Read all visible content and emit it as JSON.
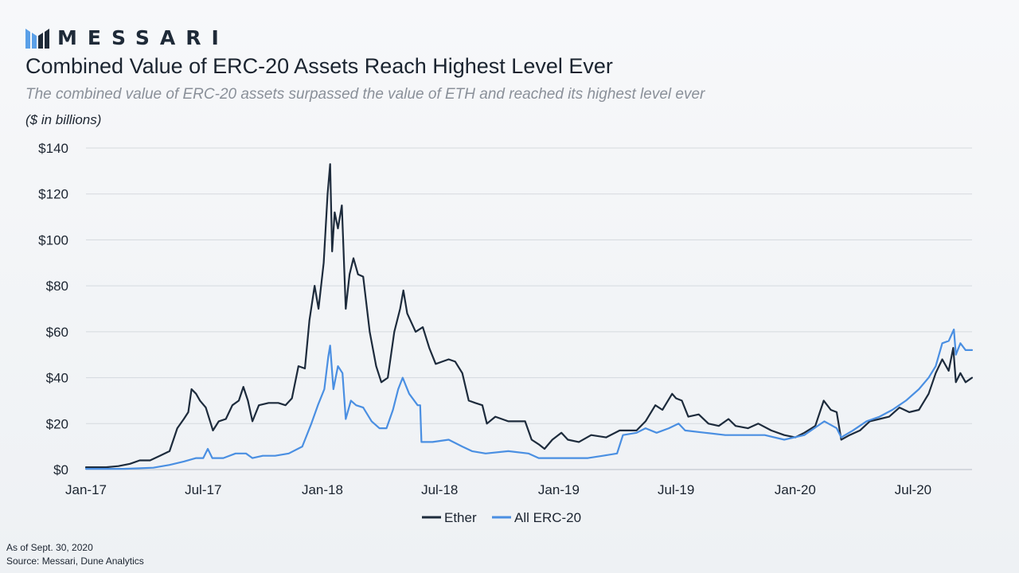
{
  "brand": {
    "name": "MESSARI",
    "logo_icon": "messari-m-logo-icon",
    "logo_colors": [
      "#5aa0e8",
      "#1e2a38"
    ]
  },
  "header": {
    "title": "Combined Value of ERC-20 Assets Reach Highest Level Ever",
    "subtitle": "The combined value of ERC-20 assets surpassed the value of ETH and reached its highest level ever",
    "units": "($ in billions)"
  },
  "footer": {
    "as_of": "As of Sept. 30, 2020",
    "source": "Source: Messari, Dune Analytics"
  },
  "chart_data": {
    "type": "line",
    "title": "",
    "xlabel": "",
    "ylabel": "",
    "ylim": [
      0,
      140
    ],
    "xlim": [
      "2017-01-01",
      "2020-09-30"
    ],
    "y_ticks": [
      0,
      20,
      40,
      60,
      80,
      100,
      120,
      140
    ],
    "y_tick_labels": [
      "$0",
      "$20",
      "$40",
      "$60",
      "$80",
      "$100",
      "$120",
      "$140"
    ],
    "x_ticks": [
      "2017-01-01",
      "2017-07-01",
      "2018-01-01",
      "2018-07-01",
      "2019-01-01",
      "2019-07-01",
      "2020-01-01",
      "2020-07-01"
    ],
    "x_tick_labels": [
      "Jan-17",
      "Jul-17",
      "Jan-18",
      "Jul-18",
      "Jan-19",
      "Jul-19",
      "Jan-20",
      "Jul-20"
    ],
    "grid": "horizontal",
    "legend": "bottom-center",
    "series": [
      {
        "name": "Ether",
        "color": "#1d2b3c",
        "points": [
          [
            "2017-01-01",
            1
          ],
          [
            "2017-02-01",
            1
          ],
          [
            "2017-02-20",
            1.5
          ],
          [
            "2017-03-10",
            2.5
          ],
          [
            "2017-03-25",
            4
          ],
          [
            "2017-04-10",
            4
          ],
          [
            "2017-04-25",
            6
          ],
          [
            "2017-05-10",
            8
          ],
          [
            "2017-05-22",
            18
          ],
          [
            "2017-06-01",
            22
          ],
          [
            "2017-06-08",
            25
          ],
          [
            "2017-06-13",
            35
          ],
          [
            "2017-06-20",
            33
          ],
          [
            "2017-06-26",
            30
          ],
          [
            "2017-07-05",
            27
          ],
          [
            "2017-07-16",
            17
          ],
          [
            "2017-07-25",
            21
          ],
          [
            "2017-08-05",
            22
          ],
          [
            "2017-08-15",
            28
          ],
          [
            "2017-08-25",
            30
          ],
          [
            "2017-09-01",
            36
          ],
          [
            "2017-09-08",
            30
          ],
          [
            "2017-09-15",
            21
          ],
          [
            "2017-09-25",
            28
          ],
          [
            "2017-10-10",
            29
          ],
          [
            "2017-10-25",
            29
          ],
          [
            "2017-11-05",
            28
          ],
          [
            "2017-11-15",
            31
          ],
          [
            "2017-11-25",
            45
          ],
          [
            "2017-12-05",
            44
          ],
          [
            "2017-12-12",
            65
          ],
          [
            "2017-12-20",
            80
          ],
          [
            "2017-12-26",
            70
          ],
          [
            "2018-01-03",
            90
          ],
          [
            "2018-01-09",
            120
          ],
          [
            "2018-01-13",
            133
          ],
          [
            "2018-01-16",
            95
          ],
          [
            "2018-01-20",
            112
          ],
          [
            "2018-01-25",
            105
          ],
          [
            "2018-01-31",
            115
          ],
          [
            "2018-02-06",
            70
          ],
          [
            "2018-02-12",
            85
          ],
          [
            "2018-02-18",
            92
          ],
          [
            "2018-02-25",
            85
          ],
          [
            "2018-03-05",
            84
          ],
          [
            "2018-03-15",
            60
          ],
          [
            "2018-03-25",
            45
          ],
          [
            "2018-04-02",
            38
          ],
          [
            "2018-04-12",
            40
          ],
          [
            "2018-04-22",
            60
          ],
          [
            "2018-05-01",
            70
          ],
          [
            "2018-05-06",
            78
          ],
          [
            "2018-05-12",
            68
          ],
          [
            "2018-05-25",
            60
          ],
          [
            "2018-06-05",
            62
          ],
          [
            "2018-06-15",
            53
          ],
          [
            "2018-06-25",
            46
          ],
          [
            "2018-07-05",
            47
          ],
          [
            "2018-07-15",
            48
          ],
          [
            "2018-07-25",
            47
          ],
          [
            "2018-08-05",
            42
          ],
          [
            "2018-08-15",
            30
          ],
          [
            "2018-08-25",
            29
          ],
          [
            "2018-09-05",
            28
          ],
          [
            "2018-09-12",
            20
          ],
          [
            "2018-09-25",
            23
          ],
          [
            "2018-10-15",
            21
          ],
          [
            "2018-11-10",
            21
          ],
          [
            "2018-11-20",
            13
          ],
          [
            "2018-12-01",
            11
          ],
          [
            "2018-12-10",
            9
          ],
          [
            "2018-12-22",
            13
          ],
          [
            "2019-01-05",
            16
          ],
          [
            "2019-01-15",
            13
          ],
          [
            "2019-02-01",
            12
          ],
          [
            "2019-02-20",
            15
          ],
          [
            "2019-03-15",
            14
          ],
          [
            "2019-04-05",
            17
          ],
          [
            "2019-05-01",
            17
          ],
          [
            "2019-05-15",
            21
          ],
          [
            "2019-05-30",
            28
          ],
          [
            "2019-06-10",
            26
          ],
          [
            "2019-06-25",
            33
          ],
          [
            "2019-07-01",
            31
          ],
          [
            "2019-07-10",
            30
          ],
          [
            "2019-07-20",
            23
          ],
          [
            "2019-08-05",
            24
          ],
          [
            "2019-08-20",
            20
          ],
          [
            "2019-09-05",
            19
          ],
          [
            "2019-09-20",
            22
          ],
          [
            "2019-10-01",
            19
          ],
          [
            "2019-10-20",
            18
          ],
          [
            "2019-11-05",
            20
          ],
          [
            "2019-11-25",
            17
          ],
          [
            "2019-12-15",
            15
          ],
          [
            "2020-01-01",
            14
          ],
          [
            "2020-01-15",
            16
          ],
          [
            "2020-02-01",
            19
          ],
          [
            "2020-02-14",
            30
          ],
          [
            "2020-02-25",
            26
          ],
          [
            "2020-03-05",
            25
          ],
          [
            "2020-03-12",
            13
          ],
          [
            "2020-03-25",
            15
          ],
          [
            "2020-04-10",
            17
          ],
          [
            "2020-04-25",
            21
          ],
          [
            "2020-05-10",
            22
          ],
          [
            "2020-05-25",
            23
          ],
          [
            "2020-06-10",
            27
          ],
          [
            "2020-06-25",
            25
          ],
          [
            "2020-07-10",
            26
          ],
          [
            "2020-07-25",
            33
          ],
          [
            "2020-08-05",
            42
          ],
          [
            "2020-08-15",
            48
          ],
          [
            "2020-08-25",
            43
          ],
          [
            "2020-09-01",
            53
          ],
          [
            "2020-09-05",
            38
          ],
          [
            "2020-09-12",
            42
          ],
          [
            "2020-09-20",
            38
          ],
          [
            "2020-09-30",
            40
          ]
        ]
      },
      {
        "name": "All ERC-20",
        "color": "#4a8fe2",
        "points": [
          [
            "2017-01-01",
            0.3
          ],
          [
            "2017-03-01",
            0.3
          ],
          [
            "2017-04-15",
            0.8
          ],
          [
            "2017-05-10",
            2
          ],
          [
            "2017-06-01",
            3.5
          ],
          [
            "2017-06-20",
            5
          ],
          [
            "2017-07-01",
            5
          ],
          [
            "2017-07-08",
            9
          ],
          [
            "2017-07-15",
            5
          ],
          [
            "2017-08-01",
            5
          ],
          [
            "2017-08-20",
            7
          ],
          [
            "2017-09-05",
            7
          ],
          [
            "2017-09-15",
            5
          ],
          [
            "2017-10-01",
            6
          ],
          [
            "2017-10-20",
            6
          ],
          [
            "2017-11-10",
            7
          ],
          [
            "2017-12-01",
            10
          ],
          [
            "2017-12-15",
            20
          ],
          [
            "2017-12-25",
            28
          ],
          [
            "2018-01-04",
            35
          ],
          [
            "2018-01-10",
            49
          ],
          [
            "2018-01-13",
            54
          ],
          [
            "2018-01-18",
            35
          ],
          [
            "2018-01-25",
            45
          ],
          [
            "2018-02-01",
            42
          ],
          [
            "2018-02-06",
            22
          ],
          [
            "2018-02-14",
            30
          ],
          [
            "2018-02-22",
            28
          ],
          [
            "2018-03-05",
            27
          ],
          [
            "2018-03-18",
            21
          ],
          [
            "2018-03-30",
            18
          ],
          [
            "2018-04-10",
            18
          ],
          [
            "2018-04-20",
            26
          ],
          [
            "2018-04-28",
            35
          ],
          [
            "2018-05-05",
            40
          ],
          [
            "2018-05-15",
            33
          ],
          [
            "2018-05-28",
            28
          ],
          [
            "2018-06-01",
            28
          ],
          [
            "2018-06-03",
            12
          ],
          [
            "2018-06-20",
            12
          ],
          [
            "2018-07-15",
            13
          ],
          [
            "2018-08-05",
            10
          ],
          [
            "2018-08-20",
            8
          ],
          [
            "2018-09-10",
            7
          ],
          [
            "2018-10-15",
            8
          ],
          [
            "2018-11-15",
            7
          ],
          [
            "2018-12-01",
            5
          ],
          [
            "2018-12-20",
            5
          ],
          [
            "2019-01-15",
            5
          ],
          [
            "2019-02-15",
            5
          ],
          [
            "2019-03-10",
            6
          ],
          [
            "2019-04-01",
            7
          ],
          [
            "2019-04-10",
            15
          ],
          [
            "2019-05-01",
            16
          ],
          [
            "2019-05-15",
            18
          ],
          [
            "2019-06-01",
            16
          ],
          [
            "2019-06-20",
            18
          ],
          [
            "2019-07-05",
            20
          ],
          [
            "2019-07-15",
            17
          ],
          [
            "2019-08-15",
            16
          ],
          [
            "2019-09-15",
            15
          ],
          [
            "2019-10-15",
            15
          ],
          [
            "2019-11-15",
            15
          ],
          [
            "2019-12-15",
            13
          ],
          [
            "2020-01-15",
            15
          ],
          [
            "2020-02-15",
            21
          ],
          [
            "2020-03-05",
            18
          ],
          [
            "2020-03-12",
            14
          ],
          [
            "2020-03-30",
            17
          ],
          [
            "2020-04-20",
            21
          ],
          [
            "2020-05-10",
            23
          ],
          [
            "2020-05-30",
            26
          ],
          [
            "2020-06-20",
            30
          ],
          [
            "2020-07-10",
            35
          ],
          [
            "2020-07-25",
            40
          ],
          [
            "2020-08-05",
            45
          ],
          [
            "2020-08-15",
            55
          ],
          [
            "2020-08-25",
            56
          ],
          [
            "2020-09-02",
            61
          ],
          [
            "2020-09-05",
            50
          ],
          [
            "2020-09-12",
            55
          ],
          [
            "2020-09-20",
            52
          ],
          [
            "2020-09-30",
            52
          ]
        ]
      }
    ]
  }
}
